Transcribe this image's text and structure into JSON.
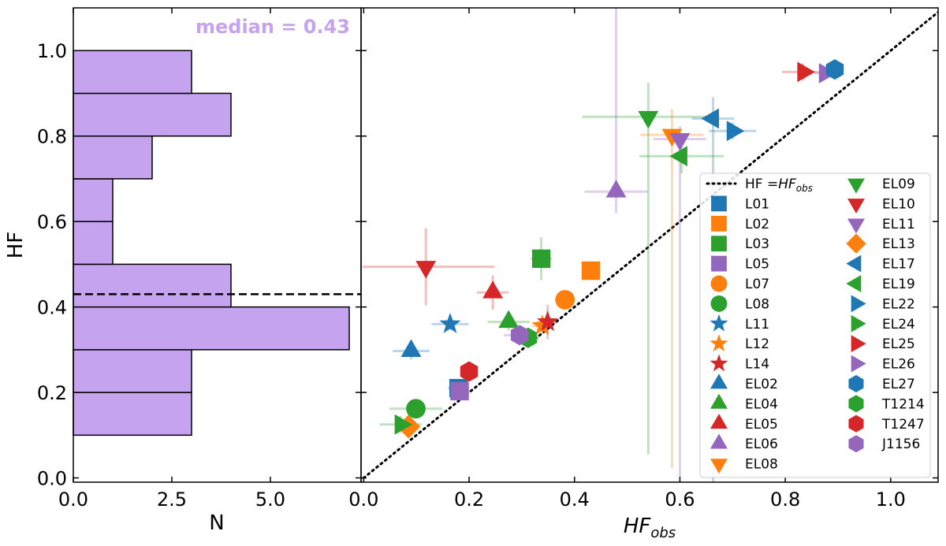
{
  "chart_data": [
    {
      "type": "histogram",
      "orientation": "horizontal",
      "bins": [
        0.1,
        0.2,
        0.3,
        0.4,
        0.5,
        0.6,
        0.7,
        0.8,
        0.9,
        1.0
      ],
      "counts": [
        3,
        3,
        7,
        4,
        1,
        1,
        2,
        4,
        3
      ],
      "color": "#c5a3ee",
      "xlabel": "N",
      "ylabel": "HF",
      "xlim": [
        0,
        7.3
      ],
      "ylim": [
        -0.01,
        1.1
      ],
      "xticks": [
        {
          "value": 0,
          "label": "0.0"
        },
        2.5,
        {
          "value": 5,
          "label": "5.0"
        }
      ],
      "yticks": [
        {
          "value": 0,
          "label": "0.0"
        },
        0.2,
        0.4,
        0.6,
        0.8,
        {
          "value": 1,
          "label": "1.0"
        }
      ],
      "median": {
        "value": 0.43,
        "label": "median = 0.43"
      }
    },
    {
      "type": "scatter",
      "xlabel": {
        "main": "HF",
        "sub": "obs"
      },
      "xlim": [
        -0.005,
        1.09
      ],
      "ylim": [
        -0.01,
        1.1
      ],
      "xticks": [
        {
          "value": 0,
          "label": "0.0"
        },
        0.2,
        0.4,
        0.6,
        0.8,
        {
          "value": 1,
          "label": "1.0"
        }
      ],
      "yticks": [
        0,
        0.2,
        0.4,
        0.6,
        0.8,
        1
      ],
      "identity": {
        "prefix": "HF =",
        "main": "HF",
        "sub": "obs"
      },
      "series": [
        {
          "name": "L01",
          "color": "#1f77b4",
          "marker": "square",
          "x": 0.18,
          "y": 0.21,
          "xerr": 0.02,
          "yerr": 0.02
        },
        {
          "name": "L02",
          "color": "#ff7f0e",
          "marker": "square",
          "x": 0.431,
          "y": 0.485,
          "xerr": 0.01,
          "yerr": 0.01
        },
        {
          "name": "L03",
          "color": "#2ca02c",
          "marker": "square",
          "x": 0.337,
          "y": 0.513,
          "xerr": 0.02,
          "yerr": 0.05
        },
        {
          "name": "L05",
          "color": "#9467bd",
          "marker": "square",
          "x": 0.182,
          "y": 0.203,
          "xerr": 0.02,
          "yerr": 0.02
        },
        {
          "name": "L07",
          "color": "#ff7f0e",
          "marker": "circle",
          "x": 0.382,
          "y": 0.417,
          "xerr": 0.01,
          "yerr": 0.01
        },
        {
          "name": "L08",
          "color": "#2ca02c",
          "marker": "circle",
          "x": 0.099,
          "y": 0.162,
          "xerr": 0.05,
          "yerr": 0.02
        },
        {
          "name": "L11",
          "color": "#1f77b4",
          "marker": "star",
          "x": 0.164,
          "y": 0.36,
          "xerr": 0.035,
          "yerr": 0.015
        },
        {
          "name": "L12",
          "color": "#ff7f0e",
          "marker": "star",
          "x": 0.339,
          "y": 0.356,
          "xerr": 0.02,
          "yerr": 0.02
        },
        {
          "name": "L14",
          "color": "#d62728",
          "marker": "star",
          "x": 0.349,
          "y": 0.365,
          "xerr": 0.02,
          "yerr": 0.04
        },
        {
          "name": "EL02",
          "color": "#1f77b4",
          "marker": "tri-up",
          "x": 0.09,
          "y": 0.297,
          "xerr": 0.035,
          "yerr": 0.02
        },
        {
          "name": "EL04",
          "color": "#2ca02c",
          "marker": "tri-up",
          "x": 0.275,
          "y": 0.365,
          "xerr": 0.04,
          "yerr": 0.02
        },
        {
          "name": "EL05",
          "color": "#d62728",
          "marker": "tri-up",
          "x": 0.245,
          "y": 0.434,
          "xerr": 0.03,
          "yerr": 0.04
        },
        {
          "name": "EL06",
          "color": "#9467bd",
          "marker": "tri-up",
          "x": 0.479,
          "y": 0.67,
          "xerr": 0.06,
          "yerr": [
            0.05,
            0.45
          ]
        },
        {
          "name": "EL08",
          "color": "#ff7f0e",
          "marker": "tri-down",
          "x": 0.585,
          "y": 0.803,
          "xerr": 0.06,
          "yerr": [
            0.78,
            0.06
          ]
        },
        {
          "name": "EL09",
          "color": "#2ca02c",
          "marker": "tri-down",
          "x": 0.54,
          "y": 0.845,
          "xerr": 0.125,
          "yerr": [
            0.79,
            0.08
          ]
        },
        {
          "name": "EL10",
          "color": "#d62728",
          "marker": "tri-down",
          "x": 0.118,
          "y": 0.494,
          "xerr": [
            0.12,
            0.13
          ],
          "yerr": 0.09
        },
        {
          "name": "EL11",
          "color": "#9467bd",
          "marker": "tri-down",
          "x": 0.6,
          "y": 0.793,
          "xerr": 0.05,
          "yerr": [
            0.8,
            0.03
          ]
        },
        {
          "name": "EL13",
          "color": "#ff7f0e",
          "marker": "diamond",
          "x": 0.085,
          "y": 0.12,
          "xerr": 0.02,
          "yerr": 0.02
        },
        {
          "name": "EL17",
          "color": "#1f77b4",
          "marker": "tri-left",
          "x": 0.663,
          "y": 0.841,
          "xerr": 0.04,
          "yerr": [
            0.85,
            0.05
          ]
        },
        {
          "name": "EL19",
          "color": "#2ca02c",
          "marker": "tri-left",
          "x": 0.603,
          "y": 0.753,
          "xerr": 0.08,
          "yerr": 0.04
        },
        {
          "name": "EL22",
          "color": "#1f77b4",
          "marker": "tri-right",
          "x": 0.7,
          "y": 0.812,
          "xerr": 0.045,
          "yerr": 0.02
        },
        {
          "name": "EL24",
          "color": "#2ca02c",
          "marker": "tri-right",
          "x": 0.07,
          "y": 0.125,
          "xerr": 0.04,
          "yerr": 0.02
        },
        {
          "name": "EL25",
          "color": "#d62728",
          "marker": "tri-right",
          "x": 0.834,
          "y": 0.95,
          "xerr": 0.04,
          "yerr": 0.02
        },
        {
          "name": "EL26",
          "color": "#9467bd",
          "marker": "tri-right",
          "x": 0.875,
          "y": 0.947,
          "xerr": 0.02,
          "yerr": 0.01
        },
        {
          "name": "EL27",
          "color": "#1f77b4",
          "marker": "hexagon",
          "x": 0.894,
          "y": 0.956,
          "xerr": 0.01,
          "yerr": 0.01
        },
        {
          "name": "T1214",
          "color": "#2ca02c",
          "marker": "hexagon",
          "x": 0.312,
          "y": 0.328,
          "xerr": 0.02,
          "yerr": 0.02
        },
        {
          "name": "T1247",
          "color": "#d62728",
          "marker": "hexagon",
          "x": 0.2,
          "y": 0.249,
          "xerr": 0.01,
          "yerr": 0.01
        },
        {
          "name": "J1156",
          "color": "#9467bd",
          "marker": "hexagon",
          "x": 0.296,
          "y": 0.334,
          "xerr": 0.03,
          "yerr": 0.02
        }
      ]
    }
  ]
}
